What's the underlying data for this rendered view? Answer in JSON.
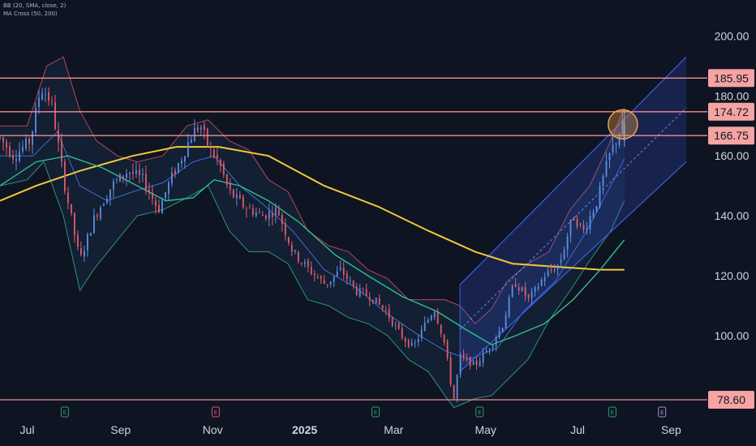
{
  "indicators": [
    "BB (20, SMA, close, 2)",
    "MA Cross (50, 200)"
  ],
  "colors": {
    "background": "#0f1422",
    "candle_up": "#5e8ee3",
    "candle_down": "#e35d6c",
    "bb_upper": "#d9566a",
    "bb_lower": "#33b292",
    "bb_basis": "#3f6bd6",
    "ma50": "#2fbf8f",
    "ma200": "#f0c93c",
    "level_line": "#ef8f8f",
    "level_badge": "#f5a3a3",
    "channel": "#3d5ce6",
    "highlight_circle": "#f0a34a",
    "earn_green": "#2b9a7d",
    "earn_red": "#d9566a",
    "earn_purple": "#a38fd6"
  },
  "chart_data": {
    "type": "candlestick",
    "x_range": [
      "2024-06-13",
      "2025-09-25"
    ],
    "ylim": [
      74,
      212
    ],
    "x_ticks": [
      {
        "label": "Jul",
        "date": "2024-07-01",
        "bold": false
      },
      {
        "label": "Sep",
        "date": "2024-09-01",
        "bold": false
      },
      {
        "label": "Nov",
        "date": "2024-11-01",
        "bold": false
      },
      {
        "label": "2025",
        "date": "2025-01-01",
        "bold": true
      },
      {
        "label": "Mar",
        "date": "2025-03-01",
        "bold": false
      },
      {
        "label": "May",
        "date": "2025-05-01",
        "bold": false
      },
      {
        "label": "Jul",
        "date": "2025-07-01",
        "bold": false
      },
      {
        "label": "Sep",
        "date": "2025-09-01",
        "bold": false
      }
    ],
    "y_ticks": [
      "200.00",
      "180.00",
      "160.00",
      "140.00",
      "120.00",
      "100.00"
    ],
    "y_tick_values": [
      200,
      180,
      160,
      140,
      120,
      100
    ],
    "levels": [
      {
        "value": 185.95,
        "label": "185.95"
      },
      {
        "value": 174.72,
        "label": "174.72"
      },
      {
        "value": 166.75,
        "label": "166.75"
      },
      {
        "value": 78.6,
        "label": "78.60"
      }
    ],
    "price_path": [
      [
        "2024-06-13",
        166
      ],
      [
        "2024-06-22",
        160
      ],
      [
        "2024-07-03",
        165
      ],
      [
        "2024-07-10",
        183
      ],
      [
        "2024-07-17",
        178
      ],
      [
        "2024-07-26",
        150
      ],
      [
        "2024-08-05",
        125
      ],
      [
        "2024-08-15",
        140
      ],
      [
        "2024-08-26",
        150
      ],
      [
        "2024-09-06",
        155
      ],
      [
        "2024-09-16",
        152
      ],
      [
        "2024-09-26",
        142
      ],
      [
        "2024-10-04",
        152
      ],
      [
        "2024-10-12",
        160
      ],
      [
        "2024-10-19",
        168
      ],
      [
        "2024-10-24",
        170
      ],
      [
        "2024-10-30",
        162
      ],
      [
        "2024-11-05",
        158
      ],
      [
        "2024-11-12",
        148
      ],
      [
        "2024-11-22",
        143
      ],
      [
        "2024-12-04",
        140
      ],
      [
        "2024-12-14",
        142
      ],
      [
        "2024-12-24",
        128
      ],
      [
        "2025-01-04",
        122
      ],
      [
        "2025-01-15",
        117
      ],
      [
        "2025-01-25",
        122
      ],
      [
        "2025-02-04",
        115
      ],
      [
        "2025-02-14",
        113
      ],
      [
        "2025-02-24",
        108
      ],
      [
        "2025-03-06",
        100
      ],
      [
        "2025-03-14",
        96
      ],
      [
        "2025-03-22",
        104
      ],
      [
        "2025-03-28",
        109
      ],
      [
        "2025-04-04",
        97
      ],
      [
        "2025-04-08",
        84
      ],
      [
        "2025-04-10",
        79
      ],
      [
        "2025-04-14",
        93
      ],
      [
        "2025-04-24",
        90
      ],
      [
        "2025-05-03",
        96
      ],
      [
        "2025-05-12",
        103
      ],
      [
        "2025-05-20",
        118
      ],
      [
        "2025-05-30",
        112
      ],
      [
        "2025-06-09",
        120
      ],
      [
        "2025-06-19",
        124
      ],
      [
        "2025-06-28",
        140
      ],
      [
        "2025-07-05",
        135
      ],
      [
        "2025-07-14",
        145
      ],
      [
        "2025-07-22",
        160
      ],
      [
        "2025-07-28",
        167
      ],
      [
        "2025-08-01",
        172
      ]
    ],
    "bb_upper": [
      [
        "2024-06-13",
        170
      ],
      [
        "2024-07-01",
        170
      ],
      [
        "2024-07-14",
        190
      ],
      [
        "2024-07-25",
        193
      ],
      [
        "2024-08-05",
        175
      ],
      [
        "2024-08-16",
        165
      ],
      [
        "2024-08-30",
        160
      ],
      [
        "2024-09-12",
        158
      ],
      [
        "2024-09-29",
        160
      ],
      [
        "2024-10-15",
        170
      ],
      [
        "2024-10-29",
        172
      ],
      [
        "2024-11-12",
        165
      ],
      [
        "2024-11-25",
        162
      ],
      [
        "2024-12-08",
        152
      ],
      [
        "2024-12-21",
        148
      ],
      [
        "2025-01-03",
        135
      ],
      [
        "2025-01-17",
        130
      ],
      [
        "2025-01-30",
        128
      ],
      [
        "2025-02-12",
        122
      ],
      [
        "2025-02-25",
        119
      ],
      [
        "2025-03-11",
        112
      ],
      [
        "2025-03-24",
        112
      ],
      [
        "2025-04-04",
        112
      ],
      [
        "2025-04-14",
        110
      ],
      [
        "2025-04-24",
        104
      ],
      [
        "2025-05-05",
        109
      ],
      [
        "2025-05-15",
        118
      ],
      [
        "2025-05-29",
        124
      ],
      [
        "2025-06-12",
        128
      ],
      [
        "2025-06-26",
        142
      ],
      [
        "2025-07-09",
        150
      ],
      [
        "2025-07-23",
        165
      ],
      [
        "2025-08-01",
        176
      ]
    ],
    "bb_lower": [
      [
        "2024-06-13",
        150
      ],
      [
        "2024-07-01",
        152
      ],
      [
        "2024-07-12",
        158
      ],
      [
        "2024-07-25",
        140
      ],
      [
        "2024-08-05",
        115
      ],
      [
        "2024-08-14",
        122
      ],
      [
        "2024-08-30",
        132
      ],
      [
        "2024-09-12",
        140
      ],
      [
        "2024-09-29",
        142
      ],
      [
        "2024-10-15",
        146
      ],
      [
        "2024-10-29",
        150
      ],
      [
        "2024-11-12",
        135
      ],
      [
        "2024-11-25",
        128
      ],
      [
        "2024-12-08",
        128
      ],
      [
        "2024-12-21",
        124
      ],
      [
        "2025-01-03",
        112
      ],
      [
        "2025-01-17",
        110
      ],
      [
        "2025-01-30",
        106
      ],
      [
        "2025-02-12",
        104
      ],
      [
        "2025-02-25",
        100
      ],
      [
        "2025-03-11",
        92
      ],
      [
        "2025-03-24",
        88
      ],
      [
        "2025-04-04",
        80
      ],
      [
        "2025-04-10",
        76
      ],
      [
        "2025-04-24",
        79
      ],
      [
        "2025-05-05",
        80
      ],
      [
        "2025-05-15",
        85
      ],
      [
        "2025-05-29",
        92
      ],
      [
        "2025-06-12",
        105
      ],
      [
        "2025-06-26",
        115
      ],
      [
        "2025-07-09",
        125
      ],
      [
        "2025-07-23",
        135
      ],
      [
        "2025-08-01",
        145
      ]
    ],
    "bb_basis": [
      [
        "2024-06-13",
        160
      ],
      [
        "2024-07-05",
        160
      ],
      [
        "2024-07-21",
        168
      ],
      [
        "2024-08-05",
        150
      ],
      [
        "2024-08-23",
        145
      ],
      [
        "2024-09-09",
        148
      ],
      [
        "2024-09-29",
        151
      ],
      [
        "2024-10-19",
        158
      ],
      [
        "2024-11-02",
        160
      ],
      [
        "2024-11-19",
        150
      ],
      [
        "2024-12-04",
        144
      ],
      [
        "2024-12-24",
        135
      ],
      [
        "2025-01-14",
        122
      ],
      [
        "2025-02-04",
        116
      ],
      [
        "2025-02-23",
        108
      ],
      [
        "2025-03-15",
        101
      ],
      [
        "2025-04-04",
        95
      ],
      [
        "2025-04-20",
        92
      ],
      [
        "2025-05-09",
        96
      ],
      [
        "2025-05-26",
        108
      ],
      [
        "2025-06-16",
        118
      ],
      [
        "2025-07-07",
        135
      ],
      [
        "2025-07-25",
        152
      ],
      [
        "2025-08-01",
        159
      ]
    ],
    "ma50": [
      [
        "2024-06-13",
        150
      ],
      [
        "2024-07-07",
        158
      ],
      [
        "2024-07-28",
        160
      ],
      [
        "2024-08-20",
        156
      ],
      [
        "2024-09-12",
        150
      ],
      [
        "2024-10-01",
        145
      ],
      [
        "2024-10-19",
        146
      ],
      [
        "2024-11-02",
        152
      ],
      [
        "2024-11-19",
        150
      ],
      [
        "2024-12-08",
        145
      ],
      [
        "2024-12-28",
        138
      ],
      [
        "2025-01-21",
        127
      ],
      [
        "2025-02-12",
        120
      ],
      [
        "2025-03-07",
        113
      ],
      [
        "2025-03-30",
        108
      ],
      [
        "2025-04-18",
        102
      ],
      [
        "2025-05-05",
        97
      ],
      [
        "2025-05-21",
        100
      ],
      [
        "2025-06-09",
        104
      ],
      [
        "2025-06-28",
        112
      ],
      [
        "2025-07-16",
        122
      ],
      [
        "2025-08-01",
        132
      ]
    ],
    "ma200": [
      [
        "2024-06-13",
        145
      ],
      [
        "2024-07-07",
        150
      ],
      [
        "2024-08-05",
        155
      ],
      [
        "2024-09-09",
        160
      ],
      [
        "2024-10-08",
        163
      ],
      [
        "2024-11-05",
        163
      ],
      [
        "2024-12-08",
        160
      ],
      [
        "2025-01-14",
        150
      ],
      [
        "2025-02-19",
        143
      ],
      [
        "2025-03-24",
        135
      ],
      [
        "2025-04-24",
        128
      ],
      [
        "2025-05-19",
        124
      ],
      [
        "2025-06-16",
        123
      ],
      [
        "2025-07-16",
        122
      ],
      [
        "2025-08-01",
        122
      ]
    ],
    "channel": {
      "upper": [
        [
          "2025-04-14",
          117
        ],
        [
          "2025-09-11",
          193
        ]
      ],
      "lower": [
        [
          "2025-04-14",
          88
        ],
        [
          "2025-09-11",
          158
        ]
      ],
      "mid": [
        [
          "2025-04-14",
          102
        ],
        [
          "2025-09-11",
          176
        ]
      ]
    },
    "highlight": {
      "date": "2025-07-31",
      "value": 170.5
    },
    "earnings_markers": [
      {
        "date": "2024-07-26",
        "type": "dividend",
        "symbol": "E",
        "color": "earn_green"
      },
      {
        "date": "2024-11-03",
        "type": "earnings",
        "symbol": "E",
        "color": "earn_red"
      },
      {
        "date": "2025-02-17",
        "type": "dividend",
        "symbol": "E",
        "color": "earn_green"
      },
      {
        "date": "2025-04-27",
        "type": "dividend",
        "symbol": "E",
        "color": "earn_green"
      },
      {
        "date": "2025-07-24",
        "type": "dividend",
        "symbol": "E",
        "color": "earn_green"
      },
      {
        "date": "2025-08-26",
        "type": "upcoming",
        "symbol": "E",
        "color": "earn_purple"
      }
    ]
  }
}
